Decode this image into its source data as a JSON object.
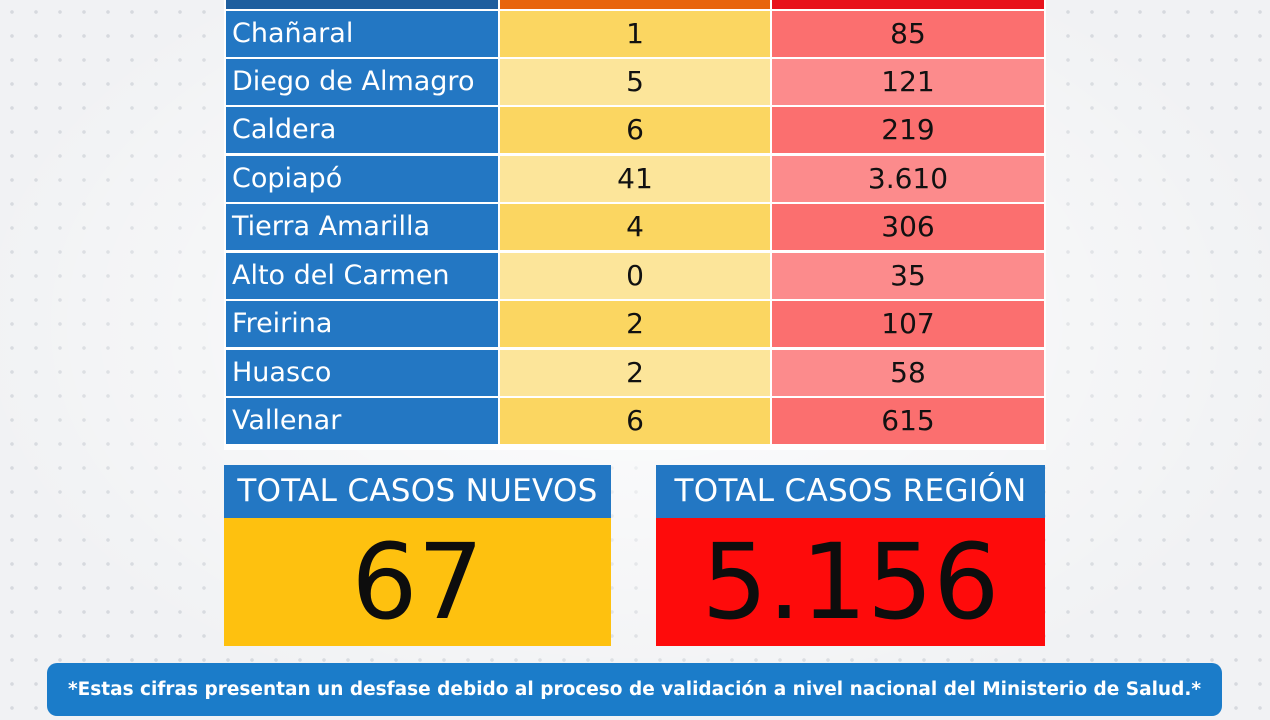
{
  "table": {
    "rows": [
      {
        "commune": "Chañaral",
        "new_cases": "1",
        "total_cases": "85"
      },
      {
        "commune": "Diego de Almagro",
        "new_cases": "5",
        "total_cases": "121"
      },
      {
        "commune": "Caldera",
        "new_cases": "6",
        "total_cases": "219"
      },
      {
        "commune": "Copiapó",
        "new_cases": "41",
        "total_cases": "3.610"
      },
      {
        "commune": "Tierra Amarilla",
        "new_cases": "4",
        "total_cases": "306"
      },
      {
        "commune": "Alto del Carmen",
        "new_cases": "0",
        "total_cases": "35"
      },
      {
        "commune": "Freirina",
        "new_cases": "2",
        "total_cases": "107"
      },
      {
        "commune": "Huasco",
        "new_cases": "2",
        "total_cases": "58"
      },
      {
        "commune": "Vallenar",
        "new_cases": "6",
        "total_cases": "615"
      }
    ]
  },
  "totals": {
    "new_label": "TOTAL CASOS NUEVOS",
    "new_value": "67",
    "region_label": "TOTAL CASOS REGIÓN",
    "region_value": "5.156"
  },
  "footnote": "*Estas cifras presentan un desfase debido al proceso de validación a nivel nacional del Ministerio de Salud.*",
  "colors": {
    "blue": "#2377c3",
    "yellow": "#fec10f",
    "red": "#fe0b0b",
    "light_yellow": "#fce59a",
    "light_red": "#fc8b8c"
  }
}
